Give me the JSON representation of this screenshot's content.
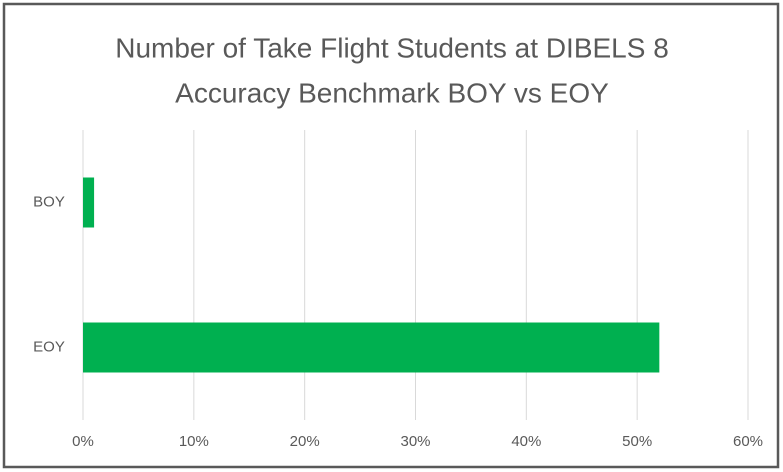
{
  "chart_data": {
    "type": "hbar",
    "title": [
      "Number of Take Flight Students at DIBELS 8",
      "Accuracy Benchmark BOY vs EOY"
    ],
    "categories": [
      "BOY",
      "EOY"
    ],
    "values": [
      1,
      52
    ],
    "color": "#00b050",
    "xlim": [
      0,
      60
    ],
    "xticks": [
      {
        "value": 0,
        "label": "0%"
      },
      {
        "value": 10,
        "label": "10%"
      },
      {
        "value": 20,
        "label": "20%"
      },
      {
        "value": 30,
        "label": "30%"
      },
      {
        "value": 40,
        "label": "40%"
      },
      {
        "value": 50,
        "label": "50%"
      },
      {
        "value": 60,
        "label": "60%"
      }
    ],
    "grid": true
  }
}
